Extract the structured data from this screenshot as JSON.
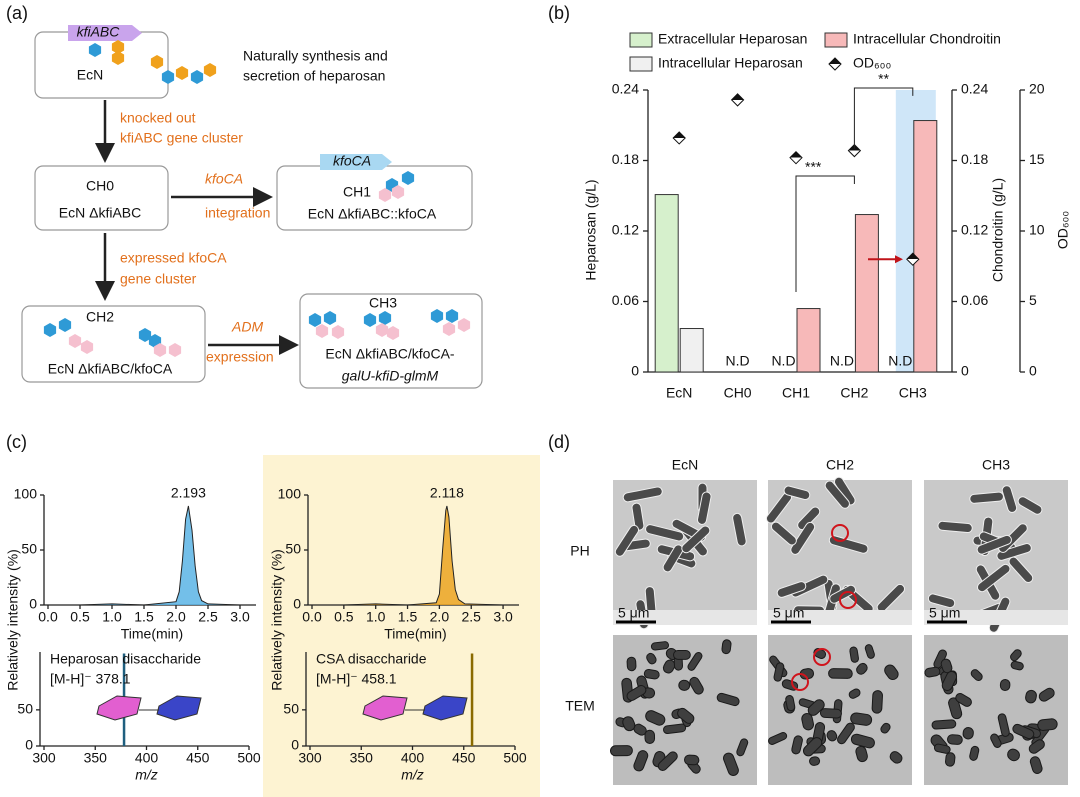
{
  "panel_labels": [
    "(a)",
    "(b)",
    "(c)",
    "(d)"
  ],
  "panel_a": {
    "kfiABC_gene": "kfiABC",
    "ecn": "EcN",
    "note": [
      "Naturally synthesis and",
      "secretion of heparosan"
    ],
    "step1": [
      "knocked out",
      "kfiABC gene cluster"
    ],
    "ch0": [
      "CH0",
      "EcN ΔkfiABC"
    ],
    "step2": [
      "kfoCA",
      "integration"
    ],
    "kfoCA_gene": "kfoCA",
    "ch1": [
      "CH1",
      "EcN ΔkfiABC::kfoCA"
    ],
    "step3": [
      "expressed kfoCA",
      "gene cluster"
    ],
    "ch2": [
      "CH2",
      "EcN ΔkfiABC/kfoCA"
    ],
    "step4": [
      "ADM",
      "expression"
    ],
    "ch3": [
      "CH3",
      "EcN ΔkfiABC/kfoCA-",
      "galU-kfiD-glmM"
    ]
  },
  "chart_data": [
    {
      "type": "bar",
      "categories": [
        "EcN",
        "CH0",
        "CH1",
        "CH2",
        "CH3"
      ],
      "series": [
        {
          "name": "Extracellular Heparosan",
          "color": "#d6f0cc",
          "values": [
            0.151,
            null,
            null,
            null,
            null
          ]
        },
        {
          "name": "Intracellular Heparosan",
          "color": "#f0f0f0",
          "values": [
            0.037,
            null,
            null,
            null,
            null
          ],
          "value_labels": [
            null,
            "N.D",
            "N.D",
            "N.D",
            "N.D"
          ]
        },
        {
          "name": "Intracellular Chondroitin",
          "color": "#f7b9b9",
          "axis": "y2",
          "values": [
            null,
            null,
            0.054,
            0.134,
            0.214
          ]
        },
        {
          "name": "OD₆₀₀",
          "color": "#222222",
          "axis": "y3",
          "marker": "diamond",
          "values": [
            16.6,
            19.3,
            15.2,
            15.7,
            8.0
          ]
        }
      ],
      "ylabel": "Heparosan (g/L)",
      "ylim": [
        0,
        0.24
      ],
      "yticks": [
        0,
        0.06,
        0.12,
        0.18,
        0.24
      ],
      "y2label": "Chondroitin (g/L)",
      "y2lim": [
        0,
        0.24
      ],
      "y2ticks": [
        0,
        0.06,
        0.12,
        0.18,
        0.24
      ],
      "y3label": "OD₆₀₀",
      "y3lim": [
        0,
        20
      ],
      "y3ticks": [
        0,
        5,
        10,
        15,
        20
      ],
      "annotations": [
        "***",
        "**"
      ]
    },
    {
      "type": "line",
      "x": [
        0,
        0.5,
        1.0,
        1.5,
        2.0,
        2.05,
        2.1,
        2.15,
        2.193,
        2.25,
        2.3,
        2.35,
        2.4,
        2.5,
        3.0,
        3.2
      ],
      "values": [
        0,
        0,
        1,
        0,
        3,
        12,
        40,
        78,
        90,
        68,
        35,
        12,
        4,
        1,
        0,
        0
      ],
      "color": "#5ab4e5",
      "fill": true,
      "xlim": [
        0,
        3.25
      ],
      "xticks": [
        {
          "value": 0,
          "label": "0.0"
        },
        0.5,
        {
          "value": 1,
          "label": "1.0"
        },
        1.5,
        {
          "value": 2,
          "label": "2.0"
        },
        2.5,
        {
          "value": 3,
          "label": "3.0"
        }
      ],
      "ylim": [
        0,
        100
      ],
      "yticks": [
        0,
        50,
        100
      ],
      "xlabel": "Time(min)",
      "ylabel": "Relatively intensity (%)",
      "peak_label": "2.193"
    },
    {
      "type": "line",
      "x": [
        0,
        0.5,
        1.0,
        1.5,
        1.95,
        2.0,
        2.05,
        2.1,
        2.118,
        2.15,
        2.2,
        2.25,
        2.3,
        2.4,
        3.0,
        3.2
      ],
      "values": [
        0,
        0,
        1,
        0,
        2,
        10,
        50,
        86,
        90,
        80,
        40,
        14,
        5,
        1,
        0,
        0
      ],
      "color": "#eba322",
      "fill": true,
      "xlim": [
        0,
        3.25
      ],
      "xticks": [
        {
          "value": 0,
          "label": "0.0"
        },
        0.5,
        {
          "value": 1,
          "label": "1.0"
        },
        1.5,
        {
          "value": 2,
          "label": "2.0"
        },
        2.5,
        {
          "value": 3,
          "label": "3.0"
        }
      ],
      "ylim": [
        0,
        100
      ],
      "yticks": [
        0,
        50,
        100
      ],
      "xlabel": "Time(min)",
      "ylabel": "Relatively intensity (%)",
      "peak_label": "2.118"
    },
    {
      "type": "stem",
      "title": "Heparosan disaccharide",
      "x": [
        378.1
      ],
      "values": [
        128
      ],
      "color": "#1f5f7f",
      "peak_label": "[M-H]⁻ 378.1",
      "xlim": [
        300,
        500
      ],
      "xticks": [
        300,
        350,
        400,
        450,
        500
      ],
      "ylim": [
        0,
        130
      ],
      "yticks": [
        0,
        50
      ],
      "xlabel": "m/z"
    },
    {
      "type": "stem",
      "title": "CSA disaccharide",
      "x": [
        458.1
      ],
      "values": [
        128
      ],
      "color": "#8a6a00",
      "peak_label": "[M-H]⁻ 458.1",
      "xlim": [
        300,
        500
      ],
      "xticks": [
        300,
        350,
        400,
        450,
        500
      ],
      "ylim": [
        0,
        130
      ],
      "yticks": [
        0,
        50
      ],
      "xlabel": "m/z"
    }
  ],
  "panel_d": {
    "columns": [
      "EcN",
      "CH2",
      "CH3"
    ],
    "rows": [
      "PH",
      "TEM"
    ],
    "scale_bar": "5 μm"
  }
}
